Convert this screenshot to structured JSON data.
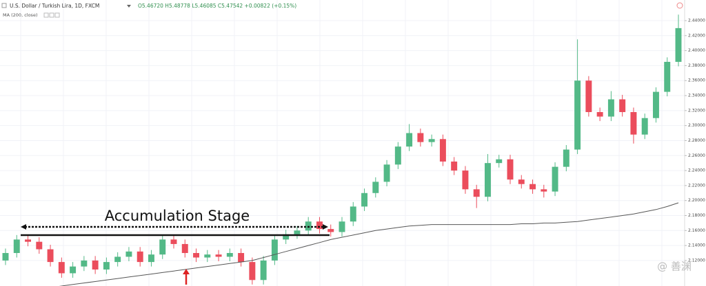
{
  "chart_data": {
    "type": "candlestick",
    "title": "U.S. Dollar / Turkish Lira, 1D, FXCM",
    "quote": "O5.46720 H5.48778 L5.46085 C5.47542 +0.00822 (+0.15%)",
    "indicator_label": "MA (200, close)",
    "annotation": "Accumulation Stage",
    "watermark": "@ 善渊",
    "up_color": "#53b987",
    "down_color": "#eb4d5c",
    "ma_color": "#555555",
    "grid": true,
    "open": [
      2.12,
      2.13,
      2.148,
      2.145,
      2.135,
      2.118,
      2.103,
      2.112,
      2.12,
      2.108,
      2.118,
      2.125,
      2.132,
      2.118,
      2.128,
      2.148,
      2.142,
      2.13,
      2.124,
      2.128,
      2.125,
      2.13,
      2.118,
      2.094,
      2.12,
      2.148,
      2.155,
      2.16,
      2.172,
      2.162,
      2.158,
      2.172,
      2.192,
      2.21,
      2.225,
      2.248,
      2.272,
      2.29,
      2.278,
      2.282,
      2.252,
      2.24,
      2.215,
      2.205,
      2.25,
      2.255,
      2.228,
      2.222,
      2.215,
      2.212,
      2.245,
      2.268,
      2.36,
      2.318,
      2.312,
      2.335,
      2.318,
      2.288,
      2.31,
      2.345,
      2.385
    ],
    "high": [
      2.136,
      2.154,
      2.154,
      2.151,
      2.141,
      2.124,
      2.118,
      2.126,
      2.126,
      2.124,
      2.131,
      2.138,
      2.138,
      2.134,
      2.154,
      2.154,
      2.148,
      2.136,
      2.134,
      2.134,
      2.136,
      2.136,
      2.124,
      2.126,
      2.154,
      2.161,
      2.166,
      2.178,
      2.178,
      2.168,
      2.178,
      2.198,
      2.216,
      2.231,
      2.254,
      2.278,
      2.302,
      2.296,
      2.288,
      2.288,
      2.258,
      2.246,
      2.221,
      2.262,
      2.261,
      2.261,
      2.234,
      2.228,
      2.221,
      2.251,
      2.274,
      2.415,
      2.366,
      2.324,
      2.346,
      2.341,
      2.324,
      2.316,
      2.351,
      2.391,
      2.448
    ],
    "low": [
      2.114,
      2.124,
      2.139,
      2.129,
      2.112,
      2.097,
      2.097,
      2.106,
      2.102,
      2.102,
      2.112,
      2.119,
      2.112,
      2.112,
      2.122,
      2.136,
      2.124,
      2.118,
      2.118,
      2.119,
      2.119,
      2.112,
      2.088,
      2.088,
      2.114,
      2.142,
      2.149,
      2.154,
      2.156,
      2.152,
      2.152,
      2.166,
      2.186,
      2.204,
      2.219,
      2.242,
      2.266,
      2.272,
      2.272,
      2.246,
      2.234,
      2.209,
      2.19,
      2.199,
      2.244,
      2.222,
      2.216,
      2.209,
      2.204,
      2.206,
      2.239,
      2.262,
      2.312,
      2.306,
      2.306,
      2.312,
      2.276,
      2.282,
      2.304,
      2.339,
      2.379
    ],
    "close": [
      2.13,
      2.148,
      2.145,
      2.135,
      2.118,
      2.103,
      2.112,
      2.12,
      2.108,
      2.118,
      2.125,
      2.132,
      2.118,
      2.128,
      2.148,
      2.142,
      2.13,
      2.124,
      2.128,
      2.125,
      2.13,
      2.118,
      2.094,
      2.12,
      2.148,
      2.155,
      2.16,
      2.172,
      2.162,
      2.158,
      2.172,
      2.192,
      2.21,
      2.225,
      2.248,
      2.272,
      2.29,
      2.278,
      2.282,
      2.252,
      2.24,
      2.215,
      2.205,
      2.25,
      2.255,
      2.228,
      2.222,
      2.215,
      2.212,
      2.245,
      2.268,
      2.36,
      2.318,
      2.312,
      2.335,
      2.318,
      2.288,
      2.31,
      2.345,
      2.385,
      2.43
    ],
    "ma": [
      2.078,
      2.08,
      2.081,
      2.083,
      2.084,
      2.086,
      2.088,
      2.09,
      2.092,
      2.094,
      2.096,
      2.098,
      2.1,
      2.102,
      2.104,
      2.106,
      2.108,
      2.11,
      2.112,
      2.114,
      2.116,
      2.118,
      2.12,
      2.124,
      2.128,
      2.132,
      2.136,
      2.14,
      2.144,
      2.148,
      2.151,
      2.154,
      2.157,
      2.16,
      2.162,
      2.164,
      2.166,
      2.167,
      2.168,
      2.168,
      2.168,
      2.168,
      2.168,
      2.168,
      2.168,
      2.168,
      2.169,
      2.169,
      2.17,
      2.17,
      2.171,
      2.172,
      2.174,
      2.176,
      2.178,
      2.18,
      2.182,
      2.185,
      2.188,
      2.192,
      2.197
    ],
    "ylim": [
      2.086,
      2.4675
    ],
    "yticks": [
      {
        "value": 2.12,
        "label": "2.12000"
      },
      {
        "value": 2.14,
        "label": "2.14000"
      },
      {
        "value": 2.16,
        "label": "2.16000"
      },
      {
        "value": 2.18,
        "label": "2.18000"
      },
      {
        "value": 2.2,
        "label": "2.20000"
      },
      {
        "value": 2.22,
        "label": "2.22000"
      },
      {
        "value": 2.24,
        "label": "2.24000"
      },
      {
        "value": 2.26,
        "label": "2.26000"
      },
      {
        "value": 2.28,
        "label": "2.28000"
      },
      {
        "value": 2.3,
        "label": "2.30000"
      },
      {
        "value": 2.32,
        "label": "2.32000"
      },
      {
        "value": 2.34,
        "label": "2.34000"
      },
      {
        "value": 2.36,
        "label": "2.36000"
      },
      {
        "value": 2.38,
        "label": "2.38000"
      },
      {
        "value": 2.4,
        "label": "2.40000"
      },
      {
        "value": 2.42,
        "label": "2.42000"
      },
      {
        "value": 2.44,
        "label": "2.44000"
      }
    ]
  }
}
